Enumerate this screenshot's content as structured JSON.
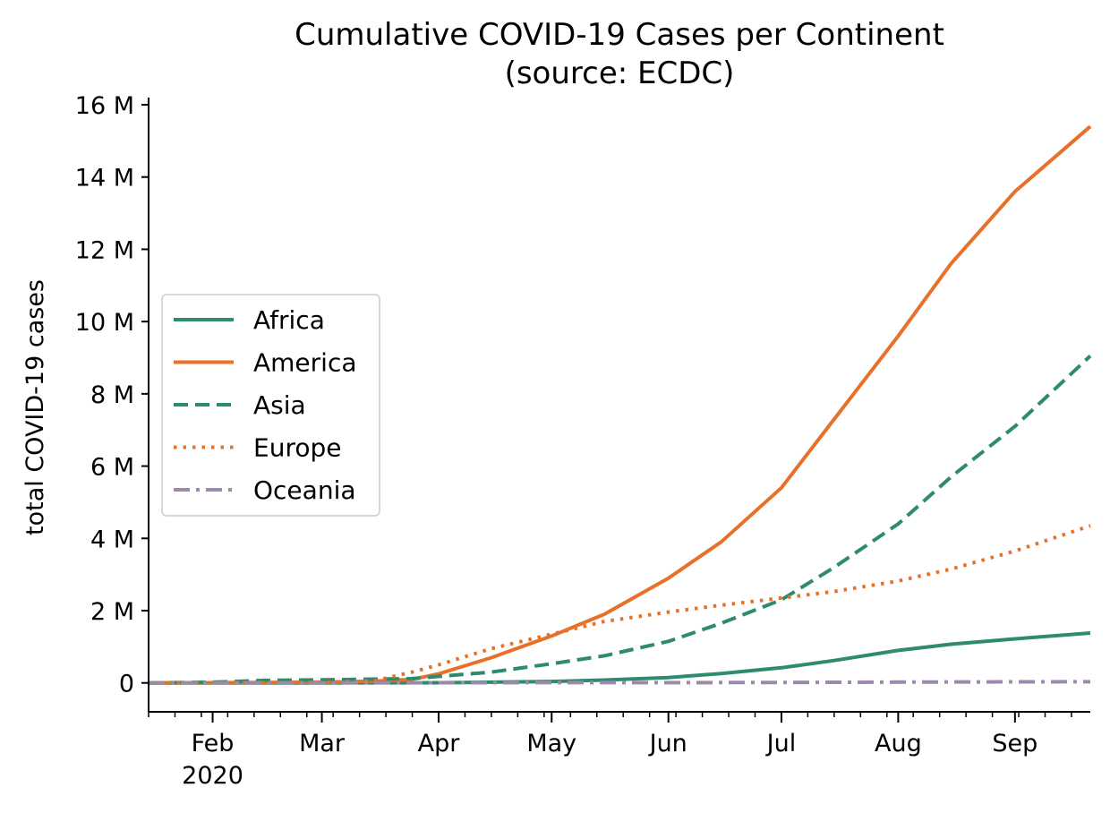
{
  "chart_data": {
    "type": "line",
    "title": [
      "Cumulative COVID-19 Cases per Continent",
      "(source: ECDC)"
    ],
    "xlabel": "",
    "ylabel": "total COVID-19 cases",
    "xlim": [
      "2020-01-15",
      "2020-09-21"
    ],
    "ylim": [
      -800000,
      16000000
    ],
    "y_ticks": [
      {
        "value": 0,
        "label": "0"
      },
      {
        "value": 2000000,
        "label": "2 M"
      },
      {
        "value": 4000000,
        "label": "4 M"
      },
      {
        "value": 6000000,
        "label": "6 M"
      },
      {
        "value": 8000000,
        "label": "8 M"
      },
      {
        "value": 10000000,
        "label": "10 M"
      },
      {
        "value": 12000000,
        "label": "12 M"
      },
      {
        "value": 14000000,
        "label": "14 M"
      },
      {
        "value": 16000000,
        "label": "16 M"
      }
    ],
    "x_ticks": [
      {
        "date": "2020-02-01",
        "label": "Feb",
        "sublabel": "2020"
      },
      {
        "date": "2020-03-01",
        "label": "Mar"
      },
      {
        "date": "2020-04-01",
        "label": "Apr"
      },
      {
        "date": "2020-05-01",
        "label": "May"
      },
      {
        "date": "2020-06-01",
        "label": "Jun"
      },
      {
        "date": "2020-07-01",
        "label": "Jul"
      },
      {
        "date": "2020-08-01",
        "label": "Aug"
      },
      {
        "date": "2020-09-01",
        "label": "Sep"
      }
    ],
    "grid": false,
    "legend_position": "center-left",
    "series": [
      {
        "name": "Africa",
        "color": "#2e8b6e",
        "style": "solid",
        "points": [
          [
            "2020-01-15",
            0
          ],
          [
            "2020-03-01",
            0
          ],
          [
            "2020-03-20",
            2000
          ],
          [
            "2020-04-01",
            6000
          ],
          [
            "2020-04-15",
            20000
          ],
          [
            "2020-05-01",
            40000
          ],
          [
            "2020-05-15",
            80000
          ],
          [
            "2020-06-01",
            150000
          ],
          [
            "2020-06-15",
            260000
          ],
          [
            "2020-07-01",
            420000
          ],
          [
            "2020-07-15",
            620000
          ],
          [
            "2020-08-01",
            900000
          ],
          [
            "2020-08-15",
            1070000
          ],
          [
            "2020-09-01",
            1220000
          ],
          [
            "2020-09-21",
            1380000
          ]
        ]
      },
      {
        "name": "America",
        "color": "#e8712a",
        "style": "solid",
        "points": [
          [
            "2020-01-15",
            0
          ],
          [
            "2020-03-01",
            20000
          ],
          [
            "2020-03-15",
            50000
          ],
          [
            "2020-03-25",
            100000
          ],
          [
            "2020-04-01",
            250000
          ],
          [
            "2020-04-15",
            700000
          ],
          [
            "2020-05-01",
            1300000
          ],
          [
            "2020-05-15",
            1900000
          ],
          [
            "2020-06-01",
            2900000
          ],
          [
            "2020-06-15",
            3900000
          ],
          [
            "2020-07-01",
            5400000
          ],
          [
            "2020-07-15",
            7300000
          ],
          [
            "2020-08-01",
            9600000
          ],
          [
            "2020-08-15",
            11600000
          ],
          [
            "2020-09-01",
            13600000
          ],
          [
            "2020-09-21",
            15400000
          ]
        ]
      },
      {
        "name": "Asia",
        "color": "#2e8b6e",
        "style": "dashed",
        "points": [
          [
            "2020-01-15",
            0
          ],
          [
            "2020-02-01",
            20000
          ],
          [
            "2020-02-15",
            70000
          ],
          [
            "2020-03-01",
            85000
          ],
          [
            "2020-03-25",
            120000
          ],
          [
            "2020-04-15",
            300000
          ],
          [
            "2020-05-01",
            530000
          ],
          [
            "2020-05-15",
            750000
          ],
          [
            "2020-06-01",
            1150000
          ],
          [
            "2020-06-15",
            1650000
          ],
          [
            "2020-07-01",
            2300000
          ],
          [
            "2020-07-15",
            3200000
          ],
          [
            "2020-08-01",
            4400000
          ],
          [
            "2020-08-15",
            5700000
          ],
          [
            "2020-09-01",
            7100000
          ],
          [
            "2020-09-21",
            9050000
          ]
        ]
      },
      {
        "name": "Europe",
        "color": "#e8712a",
        "style": "dotted",
        "points": [
          [
            "2020-01-15",
            0
          ],
          [
            "2020-02-15",
            2000
          ],
          [
            "2020-03-01",
            5000
          ],
          [
            "2020-03-15",
            60000
          ],
          [
            "2020-03-25",
            300000
          ],
          [
            "2020-04-01",
            500000
          ],
          [
            "2020-04-15",
            950000
          ],
          [
            "2020-05-01",
            1350000
          ],
          [
            "2020-05-15",
            1700000
          ],
          [
            "2020-06-01",
            1960000
          ],
          [
            "2020-06-15",
            2150000
          ],
          [
            "2020-07-01",
            2350000
          ],
          [
            "2020-07-15",
            2530000
          ],
          [
            "2020-08-01",
            2820000
          ],
          [
            "2020-08-15",
            3150000
          ],
          [
            "2020-09-01",
            3650000
          ],
          [
            "2020-09-21",
            4350000
          ]
        ]
      },
      {
        "name": "Oceania",
        "color": "#9d8aab",
        "style": "dashdot",
        "points": [
          [
            "2020-01-15",
            0
          ],
          [
            "2020-04-01",
            5000
          ],
          [
            "2020-05-01",
            8000
          ],
          [
            "2020-06-01",
            9000
          ],
          [
            "2020-07-01",
            12000
          ],
          [
            "2020-08-01",
            22000
          ],
          [
            "2020-09-01",
            30000
          ],
          [
            "2020-09-21",
            32000
          ]
        ]
      }
    ]
  }
}
